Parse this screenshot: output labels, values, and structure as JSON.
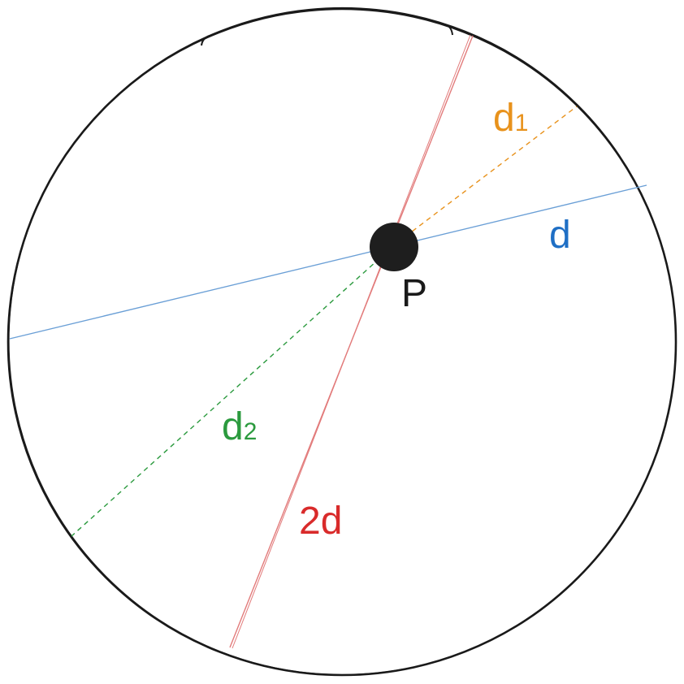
{
  "diagram": {
    "point_label": "P",
    "labels": {
      "d": "d",
      "d1": "d",
      "d1_sub": "1",
      "d2": "d",
      "d2_sub": "2",
      "two_d": "2d"
    },
    "colors": {
      "circle": "#1a1a1a",
      "point": "#1e1e1e",
      "d": "#1f6fc5",
      "d_line": "#6a9fd6",
      "d1": "#e8921c",
      "d2": "#2b9a3e",
      "two_d": "#d92b2b",
      "two_d_line": "#e27b7b"
    }
  }
}
